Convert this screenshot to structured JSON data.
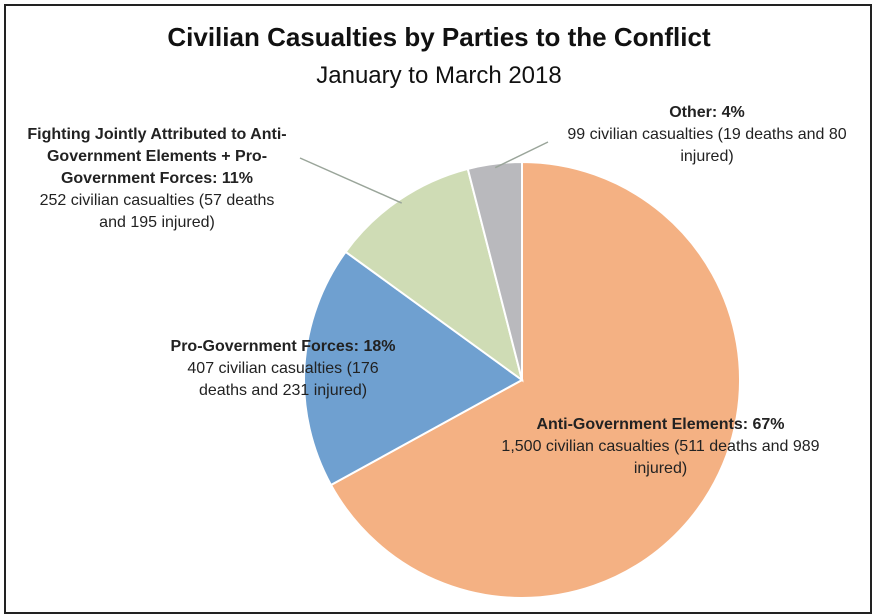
{
  "chart_data": {
    "type": "pie",
    "title": "Civilian Casualties by Parties to the Conflict",
    "subtitle": "January to March 2018",
    "slices": [
      {
        "key": "age",
        "header": "Anti-Government Elements: 67%",
        "detail": "1,500 civilian casualties (511 deaths and 989 injured)",
        "percent": 67,
        "value": 1500,
        "color": "#f4b183"
      },
      {
        "key": "pgf",
        "header": "Pro-Government Forces: 18%",
        "detail": "407 civilian casualties (176 deaths and 231 injured)",
        "percent": 18,
        "value": 407,
        "color": "#6fa0d0"
      },
      {
        "key": "joint",
        "header": "Fighting Jointly Attributed to Anti-Government Elements + Pro-Government Forces: 11%",
        "detail": "252 civilian casualties (57 deaths and 195 injured)",
        "percent": 11,
        "value": 252,
        "color": "#cfdcb5"
      },
      {
        "key": "other",
        "header": "Other: 4%",
        "detail": "99 civilian casualties (19 deaths and 80 injured)",
        "percent": 4,
        "value": 99,
        "color": "#b9b9bd"
      }
    ],
    "legend": "none"
  }
}
